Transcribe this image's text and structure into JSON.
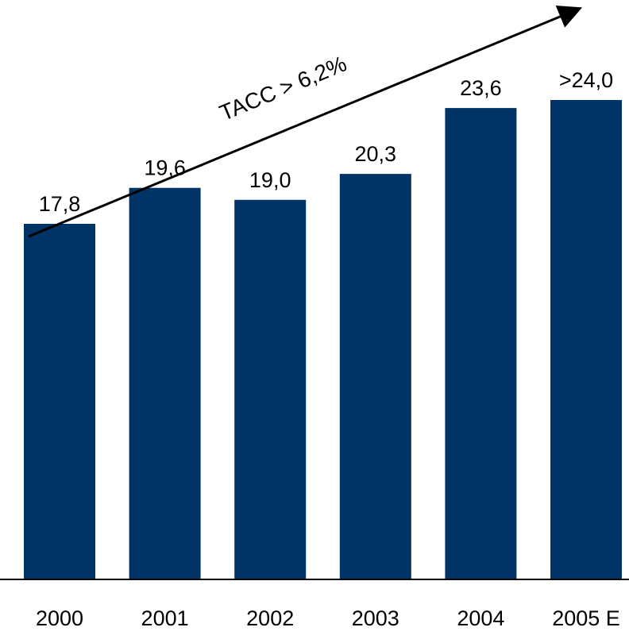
{
  "colors": {
    "bar": "#003366",
    "axis": "#000000",
    "text": "#000000"
  },
  "chart_data": {
    "type": "bar",
    "categories": [
      "2000",
      "2001",
      "2002",
      "2003",
      "2004",
      "2005 E"
    ],
    "values": [
      17.8,
      19.6,
      19.0,
      20.3,
      23.6,
      24.0
    ],
    "value_labels": [
      "17,8",
      "19,6",
      "19,0",
      "20,3",
      "23,6",
      ">24,0"
    ],
    "annotation": "TACC > 6,2%",
    "title": "",
    "xlabel": "",
    "ylabel": "",
    "ylim": [
      0,
      24.0
    ],
    "grid": false,
    "legend": "none"
  }
}
